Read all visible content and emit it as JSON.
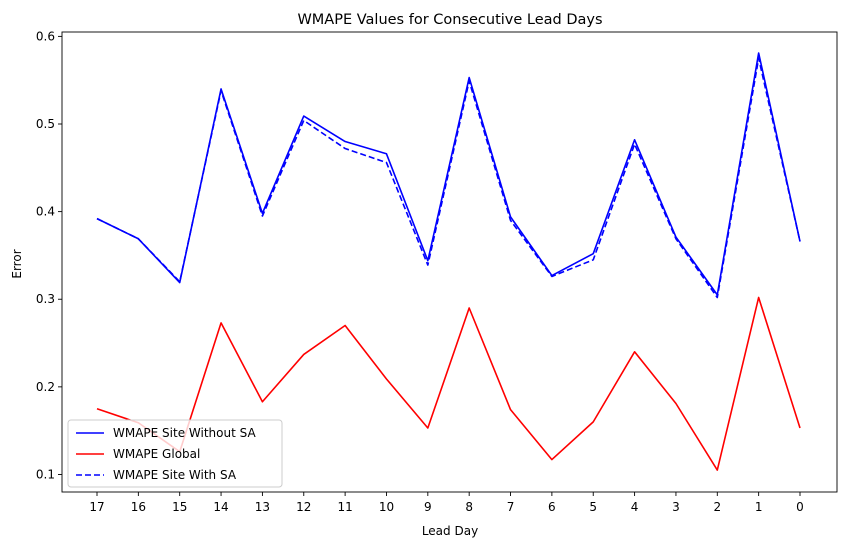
{
  "chart_data": {
    "type": "line",
    "title": "WMAPE Values for Consecutive Lead Days",
    "xlabel": "Lead Day",
    "ylabel": "Error",
    "categories": [
      "17",
      "16",
      "15",
      "14",
      "13",
      "12",
      "11",
      "10",
      "9",
      "8",
      "7",
      "6",
      "5",
      "4",
      "3",
      "2",
      "1",
      "0"
    ],
    "ylim": [
      0.08,
      0.605
    ],
    "yticks": [
      "0.1",
      "0.2",
      "0.3",
      "0.4",
      "0.5",
      "0.6"
    ],
    "grid": false,
    "legend_position": "lower-left",
    "series": [
      {
        "name": "WMAPE Site Without SA",
        "color": "#0000ff",
        "dash": "solid",
        "values": [
          0.392,
          0.369,
          0.319,
          0.54,
          0.398,
          0.509,
          0.48,
          0.466,
          0.344,
          0.553,
          0.394,
          0.327,
          0.352,
          0.482,
          0.371,
          0.305,
          0.581,
          0.366
        ]
      },
      {
        "name": "WMAPE Global",
        "color": "#ff0000",
        "dash": "solid",
        "values": [
          0.175,
          0.159,
          0.126,
          0.273,
          0.183,
          0.237,
          0.27,
          0.209,
          0.153,
          0.29,
          0.174,
          0.117,
          0.16,
          0.24,
          0.181,
          0.105,
          0.302,
          0.153
        ]
      },
      {
        "name": "WMAPE Site With SA",
        "color": "#0000ff",
        "dash": "dashed",
        "values": [
          0.392,
          0.369,
          0.32,
          0.538,
          0.395,
          0.504,
          0.472,
          0.456,
          0.339,
          0.549,
          0.39,
          0.326,
          0.345,
          0.477,
          0.369,
          0.302,
          0.575,
          0.366
        ]
      }
    ]
  }
}
